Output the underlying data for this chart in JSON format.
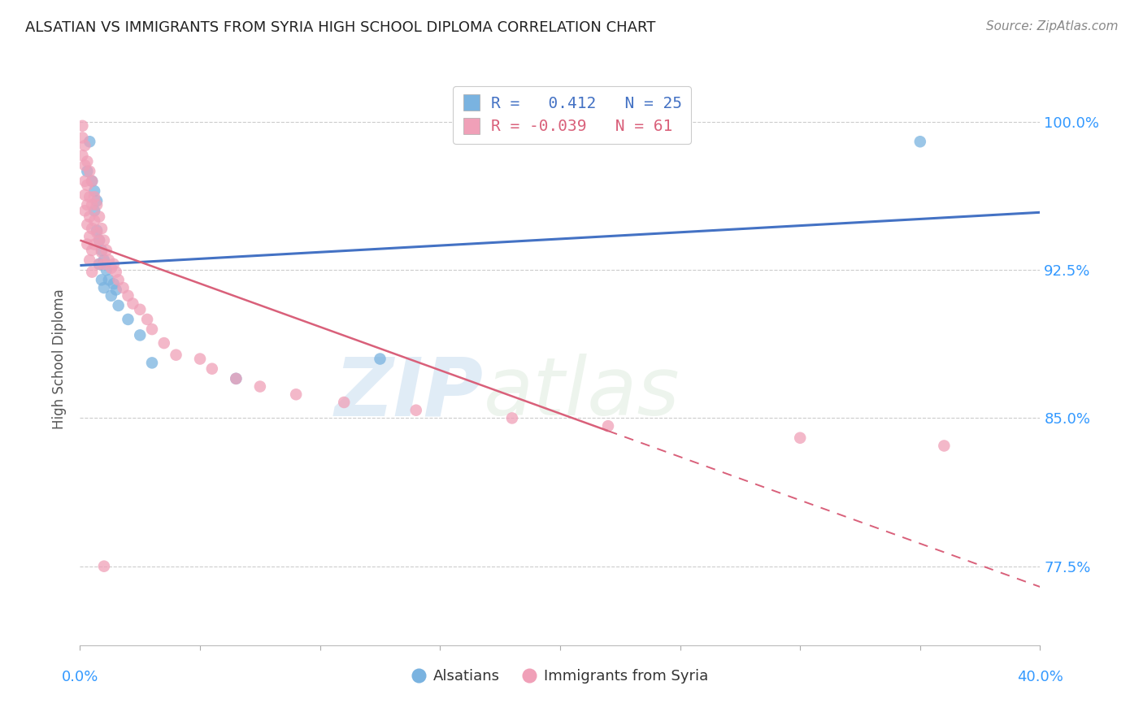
{
  "title": "ALSATIAN VS IMMIGRANTS FROM SYRIA HIGH SCHOOL DIPLOMA CORRELATION CHART",
  "source": "Source: ZipAtlas.com",
  "ylabel": "High School Diploma",
  "ytick_labels": [
    "77.5%",
    "85.0%",
    "92.5%",
    "100.0%"
  ],
  "ytick_values": [
    0.775,
    0.85,
    0.925,
    1.0
  ],
  "xlim": [
    0.0,
    0.4
  ],
  "ylim": [
    0.735,
    1.025
  ],
  "blue_color": "#7ab3e0",
  "pink_color": "#f0a0b8",
  "blue_line_color": "#4472c4",
  "pink_line_color": "#d9607a",
  "grid_color": "#cccccc",
  "legend_R_blue": "0.412",
  "legend_N_blue": "25",
  "legend_R_pink": "-0.039",
  "legend_N_pink": "61",
  "watermark_zip": "ZIP",
  "watermark_atlas": "atlas",
  "alsatians_x": [
    0.003,
    0.004,
    0.005,
    0.006,
    0.006,
    0.007,
    0.007,
    0.008,
    0.008,
    0.009,
    0.009,
    0.01,
    0.01,
    0.011,
    0.012,
    0.013,
    0.014,
    0.015,
    0.016,
    0.02,
    0.025,
    0.03,
    0.065,
    0.125,
    0.35
  ],
  "alsatians_y": [
    0.975,
    0.99,
    0.97,
    0.965,
    0.955,
    0.96,
    0.945,
    0.94,
    0.928,
    0.935,
    0.92,
    0.93,
    0.916,
    0.925,
    0.92,
    0.912,
    0.918,
    0.915,
    0.907,
    0.9,
    0.892,
    0.878,
    0.87,
    0.88,
    0.99
  ],
  "syrians_x": [
    0.001,
    0.001,
    0.001,
    0.002,
    0.002,
    0.002,
    0.002,
    0.002,
    0.003,
    0.003,
    0.003,
    0.003,
    0.003,
    0.004,
    0.004,
    0.004,
    0.004,
    0.004,
    0.005,
    0.005,
    0.005,
    0.005,
    0.005,
    0.006,
    0.006,
    0.006,
    0.007,
    0.007,
    0.008,
    0.008,
    0.008,
    0.009,
    0.009,
    0.01,
    0.01,
    0.011,
    0.012,
    0.013,
    0.014,
    0.015,
    0.016,
    0.018,
    0.02,
    0.022,
    0.025,
    0.028,
    0.03,
    0.035,
    0.04,
    0.05,
    0.055,
    0.065,
    0.075,
    0.09,
    0.11,
    0.14,
    0.18,
    0.22,
    0.3,
    0.36,
    0.01
  ],
  "syrians_y": [
    0.998,
    0.992,
    0.983,
    0.988,
    0.978,
    0.97,
    0.963,
    0.955,
    0.98,
    0.968,
    0.958,
    0.948,
    0.938,
    0.975,
    0.962,
    0.952,
    0.942,
    0.93,
    0.97,
    0.958,
    0.946,
    0.935,
    0.924,
    0.962,
    0.95,
    0.938,
    0.958,
    0.944,
    0.952,
    0.94,
    0.928,
    0.946,
    0.934,
    0.94,
    0.928,
    0.935,
    0.93,
    0.926,
    0.928,
    0.924,
    0.92,
    0.916,
    0.912,
    0.908,
    0.905,
    0.9,
    0.895,
    0.888,
    0.882,
    0.88,
    0.875,
    0.87,
    0.866,
    0.862,
    0.858,
    0.854,
    0.85,
    0.846,
    0.84,
    0.836,
    0.775
  ]
}
